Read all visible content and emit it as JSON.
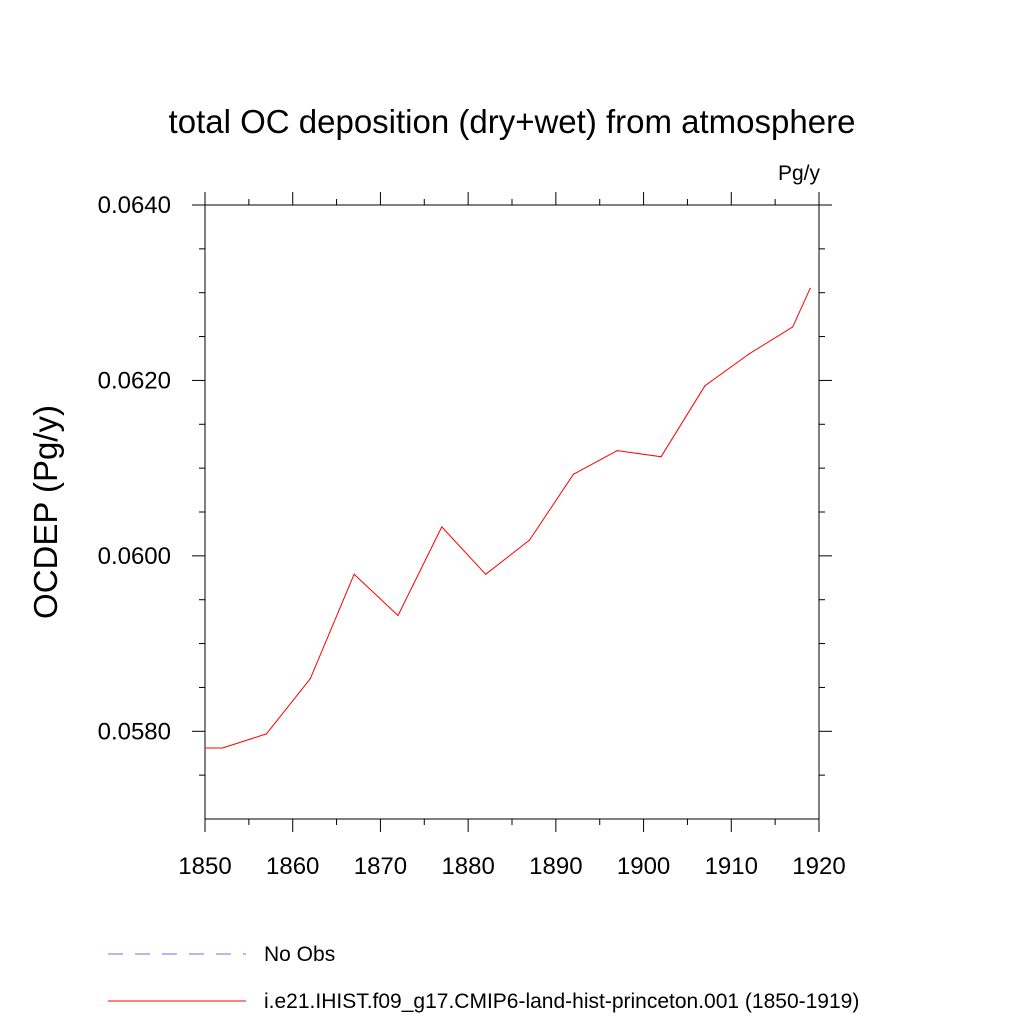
{
  "chart_data": {
    "type": "line",
    "title": "total OC deposition (dry+wet) from atmosphere",
    "units": "Pg/y",
    "xlabel": "",
    "ylabel": "OCDEP  (Pg/y)",
    "xlim": [
      1850,
      1920
    ],
    "ylim": [
      0.057,
      0.064
    ],
    "x_major_ticks": [
      1850,
      1860,
      1870,
      1880,
      1890,
      1900,
      1910,
      1920
    ],
    "x_minor_ticks": [
      1855,
      1865,
      1875,
      1885,
      1895,
      1905,
      1915
    ],
    "x_tick_labels": [
      "1850",
      "1860",
      "1870",
      "1880",
      "1890",
      "1900",
      "1910",
      "1920"
    ],
    "y_major_ticks": [
      0.058,
      0.06,
      0.062,
      0.064
    ],
    "y_minor_ticks": [
      0.0575,
      0.0585,
      0.059,
      0.0595,
      0.0605,
      0.061,
      0.0615,
      0.0625,
      0.063,
      0.0635
    ],
    "y_tick_labels": [
      "0.0580",
      "0.0600",
      "0.0620",
      "0.0640"
    ],
    "grid": false,
    "legend_position": "bottom",
    "series": [
      {
        "name": "i.e21.IHIST.f09_g17.CMIP6-land-hist-princeton.001 (1850-1919)",
        "color": "#ff0000",
        "dash": "solid",
        "x": [
          1850,
          1852,
          1857,
          1862,
          1867,
          1872,
          1877,
          1882,
          1887,
          1892,
          1897,
          1902,
          1907,
          1912,
          1917,
          1919
        ],
        "y": [
          0.05781,
          0.05781,
          0.05797,
          0.0586,
          0.05979,
          0.05932,
          0.06033,
          0.05979,
          0.06018,
          0.06093,
          0.0612,
          0.06113,
          0.06194,
          0.0623,
          0.06261,
          0.06305
        ]
      }
    ],
    "legend": [
      {
        "name": "No Obs",
        "color": "#7b68ee",
        "dash": "dashed"
      },
      {
        "name": "i.e21.IHIST.f09_g17.CMIP6-land-hist-princeton.001 (1850-1919)",
        "color": "#ff0000",
        "dash": "solid"
      }
    ]
  }
}
